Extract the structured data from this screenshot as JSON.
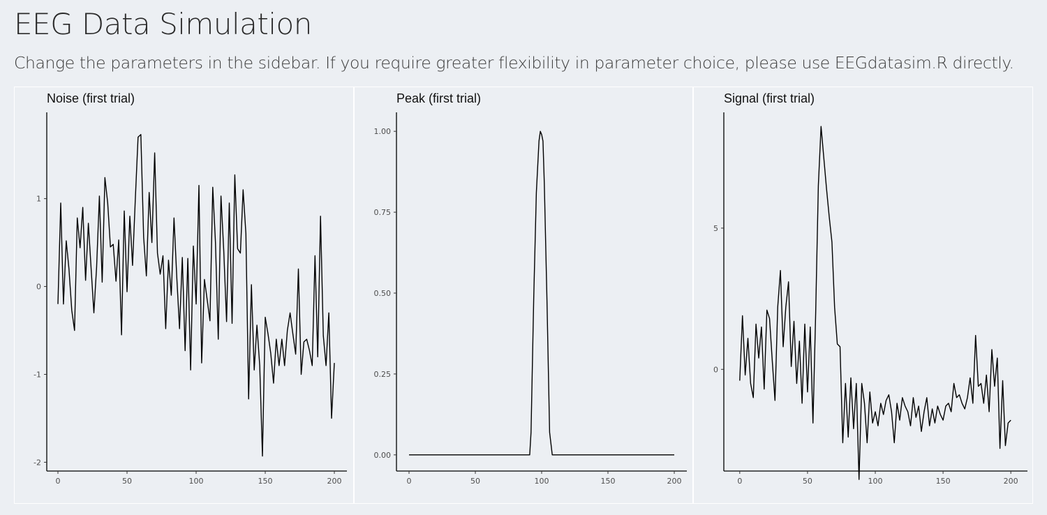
{
  "header": {
    "title": "EEG Data Simulation",
    "subtitle": "Change the parameters in the sidebar. If you require greater flexibility in parameter choice, please use EEGdatasim.R directly."
  },
  "chart_data": [
    {
      "type": "line",
      "title": "Noise (first trial)",
      "xlabel": "",
      "ylabel": "",
      "xlim": [
        0,
        200
      ],
      "ylim": [
        -2.1,
        1.95
      ],
      "xticks": [
        0,
        50,
        100,
        150,
        200
      ],
      "xtick_labels": [
        "0",
        "50",
        "100",
        "150",
        "200"
      ],
      "yticks": [
        -2,
        -1,
        0,
        1
      ],
      "ytick_labels": [
        "-2",
        "-1",
        "0",
        "1"
      ],
      "grid": false,
      "series": [
        {
          "x": [
            0,
            2,
            4,
            6,
            8,
            10,
            12,
            14,
            16,
            18,
            20,
            22,
            24,
            26,
            28,
            30,
            32,
            34,
            36,
            38,
            40,
            42,
            44,
            46,
            48,
            50,
            52,
            54,
            56,
            58,
            60,
            62,
            64,
            66,
            68,
            70,
            72,
            74,
            76,
            78,
            80,
            82,
            84,
            86,
            88,
            90,
            92,
            94,
            96,
            98,
            100,
            102,
            104,
            106,
            108,
            110,
            112,
            114,
            116,
            118,
            120,
            122,
            124,
            126,
            128,
            130,
            132,
            134,
            136,
            138,
            140,
            142,
            144,
            146,
            148,
            150,
            152,
            154,
            156,
            158,
            160,
            162,
            164,
            166,
            168,
            170,
            172,
            174,
            176,
            178,
            180,
            182,
            184,
            186,
            188,
            190,
            192,
            194,
            196,
            198,
            200
          ],
          "values": [
            -0.2,
            0.95,
            -0.2,
            0.52,
            0.2,
            -0.27,
            -0.5,
            0.78,
            0.44,
            0.9,
            0.07,
            0.72,
            0.21,
            -0.3,
            0.22,
            1.03,
            0.05,
            1.24,
            0.95,
            0.45,
            0.48,
            0.06,
            0.53,
            -0.55,
            0.86,
            -0.06,
            0.8,
            0.24,
            1.0,
            1.7,
            1.73,
            0.56,
            0.12,
            1.07,
            0.5,
            1.52,
            0.38,
            0.14,
            0.35,
            -0.48,
            0.3,
            -0.1,
            0.78,
            0.1,
            -0.48,
            0.33,
            -0.73,
            0.32,
            -0.95,
            0.46,
            -0.2,
            1.15,
            -0.87,
            0.08,
            -0.15,
            -0.39,
            1.13,
            0.5,
            -0.6,
            1.03,
            0.4,
            -0.4,
            0.95,
            -0.42,
            1.27,
            0.43,
            0.38,
            1.1,
            0.6,
            -1.28,
            0.02,
            -0.95,
            -0.44,
            -0.9,
            -1.93,
            -0.35,
            -0.54,
            -0.76,
            -1.1,
            -0.6,
            -0.9,
            -0.6,
            -0.9,
            -0.5,
            -0.3,
            -0.54,
            -0.77,
            0.2,
            -1.0,
            -0.63,
            -0.6,
            -0.73,
            -0.9,
            0.35,
            -0.8,
            0.8,
            -0.56,
            -0.9,
            -0.3,
            -1.5,
            -0.87
          ],
          "comment_step_note": ""
        }
      ]
    },
    {
      "type": "line",
      "title": "Peak (first trial)",
      "xlabel": "",
      "ylabel": "",
      "xlim": [
        0,
        200
      ],
      "ylim": [
        -0.05,
        1.05
      ],
      "xticks": [
        0,
        50,
        100,
        150,
        200
      ],
      "xtick_labels": [
        "0",
        "50",
        "100",
        "150",
        "200"
      ],
      "yticks": [
        0,
        0.25,
        0.5,
        0.75,
        1
      ],
      "ytick_labels": [
        "0.00",
        "0.25",
        "0.50",
        "0.75",
        "1.00"
      ],
      "grid": false,
      "series": [
        {
          "x": [
            0,
            91,
            92,
            94,
            96,
            98,
            99,
            100,
            101,
            102,
            104,
            106,
            108,
            109,
            200
          ],
          "values": [
            0,
            0,
            0.07,
            0.48,
            0.81,
            0.97,
            1.0,
            0.99,
            0.97,
            0.84,
            0.48,
            0.07,
            0,
            0,
            0
          ]
        }
      ]
    },
    {
      "type": "line",
      "title": "Signal (first trial)",
      "xlabel": "",
      "ylabel": "",
      "xlim": [
        -3,
        203
      ],
      "ylim": [
        -3.6,
        9.0
      ],
      "xticks": [
        0,
        50,
        100,
        150,
        200
      ],
      "xtick_labels": [
        "0",
        "50",
        "100",
        "150",
        "200"
      ],
      "yticks": [
        0,
        5
      ],
      "ytick_labels": [
        "0",
        "5"
      ],
      "grid": false,
      "series": [
        {
          "x": [
            0,
            2,
            4,
            6,
            8,
            10,
            12,
            14,
            16,
            18,
            20,
            22,
            24,
            26,
            28,
            30,
            32,
            34,
            36,
            38,
            40,
            42,
            44,
            46,
            48,
            50,
            52,
            54,
            56,
            58,
            60,
            62,
            64,
            66,
            68,
            70,
            72,
            74,
            76,
            78,
            80,
            82,
            84,
            86,
            88,
            90,
            92,
            94,
            96,
            98,
            100,
            102,
            104,
            106,
            108,
            110,
            112,
            114,
            116,
            118,
            120,
            122,
            124,
            126,
            128,
            130,
            132,
            134,
            136,
            138,
            140,
            142,
            144,
            146,
            148,
            150,
            152,
            154,
            156,
            158,
            160,
            162,
            164,
            166,
            168,
            170,
            172,
            174,
            176,
            178,
            180,
            182,
            184,
            186,
            188,
            190,
            192,
            194,
            196,
            198,
            200
          ],
          "values": [
            -0.4,
            1.9,
            -0.2,
            1.1,
            -0.5,
            -1.0,
            1.6,
            0.4,
            1.5,
            -0.7,
            2.1,
            1.8,
            0.3,
            -1.1,
            2.2,
            3.5,
            0.8,
            2.2,
            3.1,
            0.1,
            1.7,
            -0.5,
            1.0,
            -1.2,
            1.6,
            -0.8,
            1.5,
            -1.9,
            2.0,
            6.5,
            8.6,
            7.5,
            6.4,
            5.4,
            4.5,
            2.2,
            0.9,
            0.8,
            -2.6,
            -0.5,
            -2.4,
            -0.3,
            -2.1,
            -0.5,
            -3.9,
            -0.5,
            -1.2,
            -2.6,
            -0.8,
            -1.9,
            -1.5,
            -2.0,
            -1.2,
            -1.6,
            -1.1,
            -0.9,
            -1.5,
            -2.6,
            -1.2,
            -1.8,
            -1.0,
            -1.3,
            -1.5,
            -2.0,
            -1.0,
            -1.7,
            -1.3,
            -2.2,
            -1.5,
            -1.0,
            -2.0,
            -1.4,
            -1.9,
            -1.3,
            -1.6,
            -1.8,
            -1.3,
            -1.2,
            -1.5,
            -0.5,
            -1.0,
            -0.9,
            -1.2,
            -1.4,
            -1.0,
            -0.3,
            -1.2,
            1.2,
            -0.6,
            -0.5,
            -1.2,
            -0.2,
            -1.5,
            0.7,
            -0.6,
            0.4,
            -2.8,
            -0.4,
            -2.7,
            -1.9,
            -1.8
          ]
        }
      ]
    }
  ]
}
